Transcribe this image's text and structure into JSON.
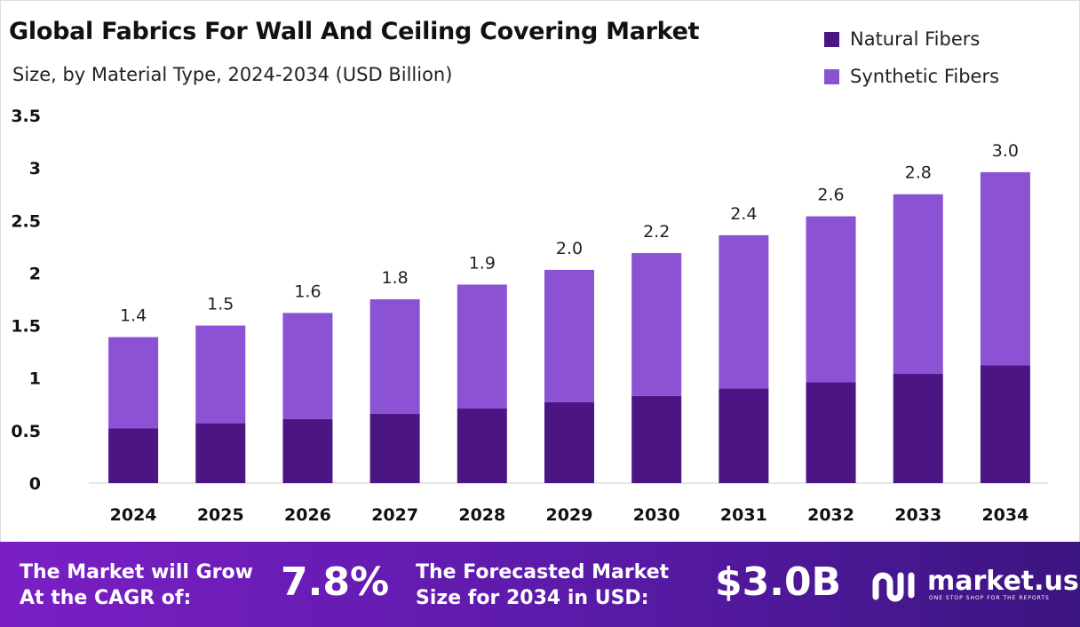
{
  "chart_data": {
    "type": "bar",
    "stacked": true,
    "title": "Global Fabrics For Wall And Ceiling Covering Market",
    "subtitle": "Size, by Material Type, 2024-2034 (USD Billion)",
    "categories": [
      "2024",
      "2025",
      "2026",
      "2027",
      "2028",
      "2029",
      "2030",
      "2031",
      "2032",
      "2033",
      "2034"
    ],
    "series": [
      {
        "name": "Natural Fibers",
        "color": "#4b1584",
        "values": [
          0.52,
          0.57,
          0.61,
          0.66,
          0.71,
          0.77,
          0.83,
          0.9,
          0.96,
          1.04,
          1.12
        ]
      },
      {
        "name": "Synthetic Fibers",
        "color": "#8c52d4",
        "values": [
          0.87,
          0.93,
          1.01,
          1.09,
          1.18,
          1.26,
          1.36,
          1.46,
          1.58,
          1.71,
          1.84
        ]
      }
    ],
    "total_labels": [
      "1.4",
      "1.5",
      "1.6",
      "1.8",
      "1.9",
      "2.0",
      "2.2",
      "2.4",
      "2.6",
      "2.8",
      "3.0"
    ],
    "ylim": [
      0,
      3.5
    ],
    "yticks": [
      "0",
      "0.5",
      "1",
      "1.5",
      "2",
      "2.5",
      "3",
      "3.5"
    ],
    "grid": false,
    "legend_position": "top-right"
  },
  "footer": {
    "cagr_label_1": "The Market will Grow",
    "cagr_label_2": "At the CAGR of:",
    "cagr_value": "7.8%",
    "forecast_label_1": "The Forecasted Market",
    "forecast_label_2": "Size for 2034 in USD:",
    "forecast_value": "$3.0B",
    "logo_name": "market.us",
    "logo_tagline": "ONE STOP SHOP FOR THE REPORTS"
  }
}
